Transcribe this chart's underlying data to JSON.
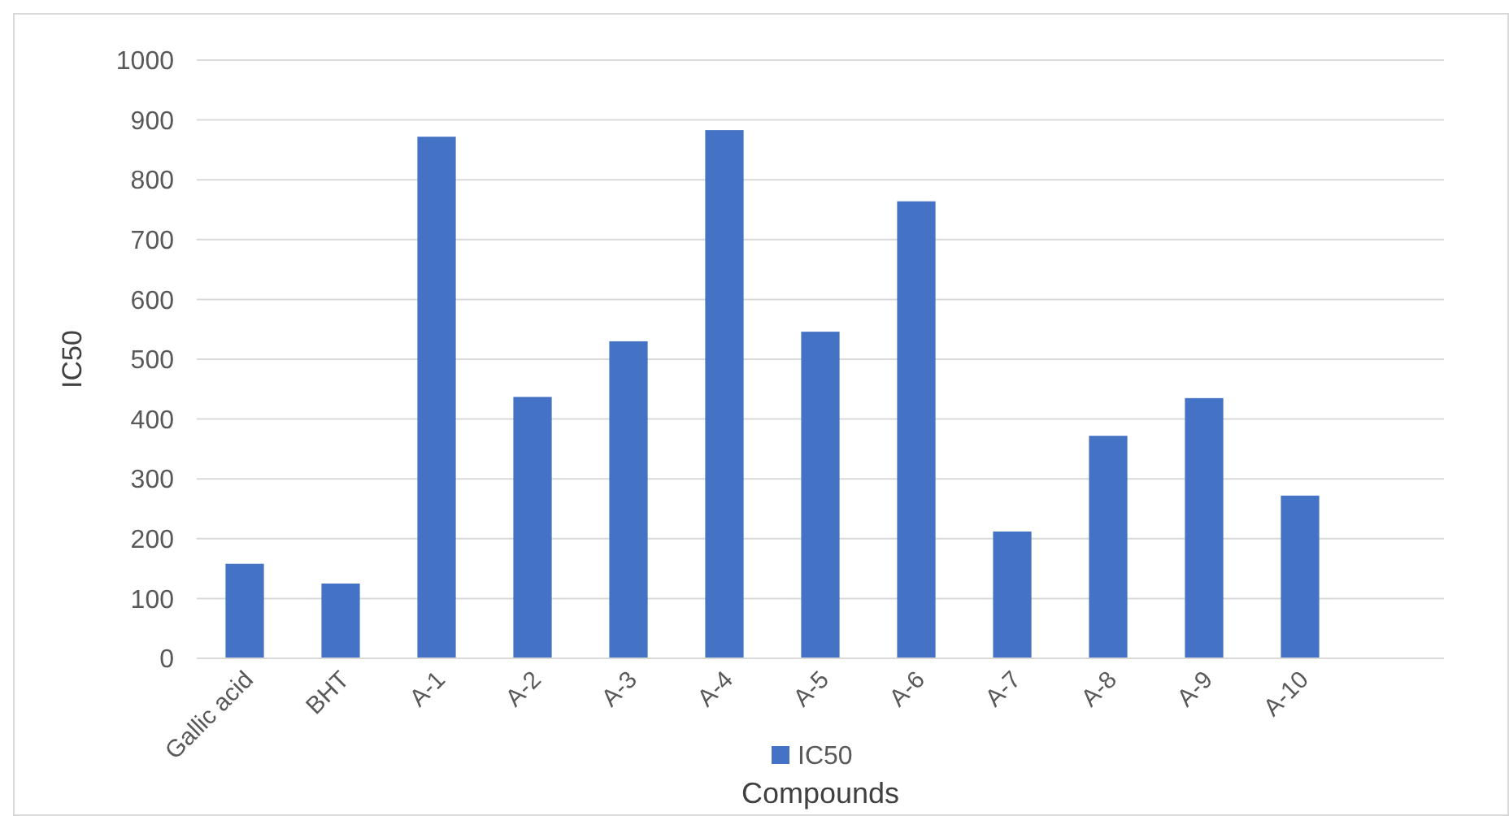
{
  "chart_data": {
    "type": "bar",
    "xlabel": "Compounds",
    "ylabel": "IC50",
    "categories": [
      "Gallic acid",
      "BHT",
      "A-1",
      "A-2",
      "A-3",
      "A-4",
      "A-5",
      "A-6",
      "A-7",
      "A-8",
      "A-9",
      "A-10",
      null
    ],
    "series": [
      {
        "name": "IC50",
        "color": "#4472c4",
        "values": [
          158,
          125,
          872,
          437,
          530,
          883,
          546,
          764,
          212,
          372,
          435,
          272,
          null
        ]
      }
    ],
    "ylim": [
      0,
      1000
    ],
    "yticks": [
      0,
      100,
      200,
      300,
      400,
      500,
      600,
      700,
      800,
      900,
      1000
    ],
    "grid": "y",
    "legend": "bottom"
  }
}
